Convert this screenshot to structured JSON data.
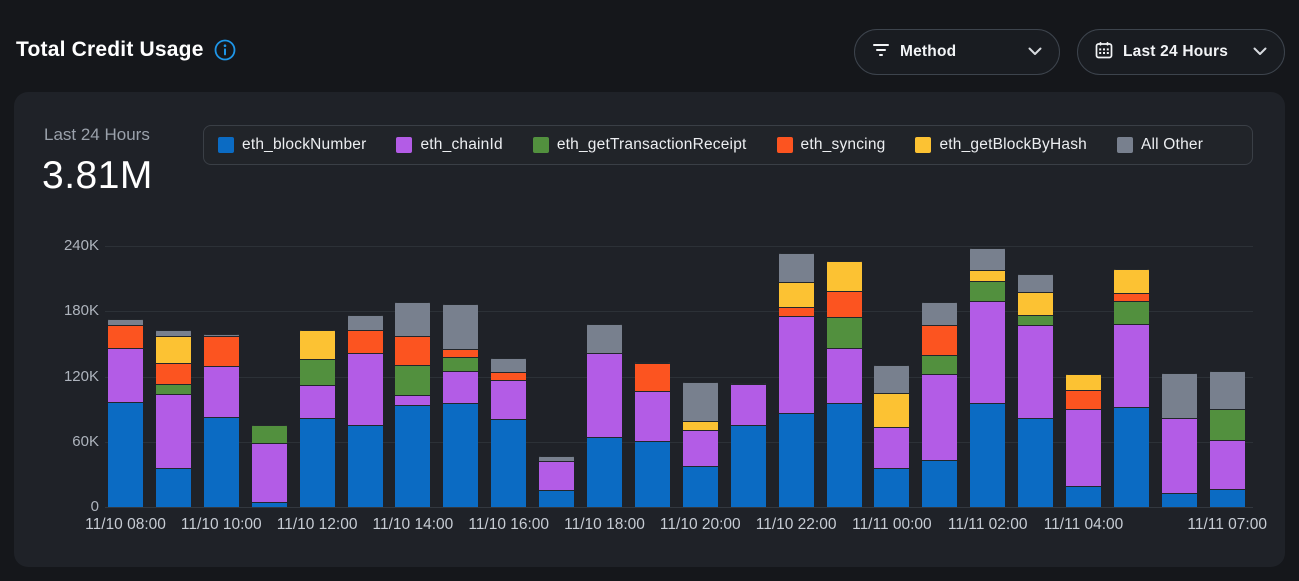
{
  "page": {
    "title": "Total Credit Usage"
  },
  "controls": {
    "method_dropdown": {
      "label": "Method",
      "icon": "filter-icon"
    },
    "time_dropdown": {
      "label": "Last 24 Hours",
      "icon": "calendar-icon"
    }
  },
  "summary": {
    "label": "Last 24 Hours",
    "value": "3.81M"
  },
  "colors": {
    "accent_info": "#1e96e8",
    "page_bg": "#15171b",
    "card_bg": "#1f2228",
    "gridline": "#2c3137"
  },
  "chart_data": {
    "type": "bar",
    "stacked": true,
    "title": "Total Credit Usage - Last 24 Hours",
    "unit": "credits, values in thousands (K)",
    "ylim": [
      0,
      240
    ],
    "y_ticks": [
      "0",
      "60K",
      "120K",
      "180K",
      "240K"
    ],
    "grid": "horizontal",
    "legend_position": "top",
    "categories": [
      "11/10 08:00",
      "11/10 09:00",
      "11/10 10:00",
      "11/10 11:00",
      "11/10 12:00",
      "11/10 13:00",
      "11/10 14:00",
      "11/10 15:00",
      "11/10 16:00",
      "11/10 17:00",
      "11/10 18:00",
      "11/10 19:00",
      "11/10 20:00",
      "11/10 21:00",
      "11/10 22:00",
      "11/10 23:00",
      "11/11 00:00",
      "11/11 01:00",
      "11/11 02:00",
      "11/11 03:00",
      "11/11 04:00",
      "11/11 05:00",
      "11/11 06:00",
      "11/11 07:00"
    ],
    "x_tick_labels": [
      {
        "index": 0,
        "label": "11/10 08:00"
      },
      {
        "index": 2,
        "label": "11/10 10:00"
      },
      {
        "index": 4,
        "label": "11/10 12:00"
      },
      {
        "index": 6,
        "label": "11/10 14:00"
      },
      {
        "index": 8,
        "label": "11/10 16:00"
      },
      {
        "index": 10,
        "label": "11/10 18:00"
      },
      {
        "index": 12,
        "label": "11/10 20:00"
      },
      {
        "index": 14,
        "label": "11/10 22:00"
      },
      {
        "index": 16,
        "label": "11/11 00:00"
      },
      {
        "index": 18,
        "label": "11/11 02:00"
      },
      {
        "index": 20,
        "label": "11/11 04:00"
      },
      {
        "index": 23,
        "label": "11/11 07:00"
      }
    ],
    "series": [
      {
        "name": "eth_blockNumber",
        "color": "#0b6bc3",
        "values": [
          97,
          36,
          83,
          5,
          82,
          75,
          94,
          96,
          81,
          16,
          64,
          61,
          38,
          75,
          86,
          96,
          36,
          43,
          96,
          82,
          19,
          92,
          13,
          17
        ]
      },
      {
        "name": "eth_chainId",
        "color": "#b35ce6",
        "values": [
          49,
          68,
          47,
          54,
          30,
          67,
          9,
          29,
          36,
          26,
          78,
          46,
          33,
          38,
          90,
          50,
          38,
          79,
          93,
          85,
          71,
          76,
          69,
          45
        ]
      },
      {
        "name": "eth_getTransactionReceipt",
        "color": "#52903e",
        "values": [
          0,
          9,
          0,
          16,
          24,
          0,
          28,
          13,
          0,
          0,
          0,
          0,
          0,
          0,
          0,
          29,
          0,
          18,
          19,
          10,
          0,
          21,
          0,
          28
        ]
      },
      {
        "name": "eth_syncing",
        "color": "#fc5420",
        "values": [
          21,
          19,
          27,
          0,
          0,
          21,
          26,
          7,
          7,
          0,
          0,
          25,
          0,
          0,
          8,
          24,
          0,
          27,
          0,
          0,
          18,
          8,
          0,
          0
        ]
      },
      {
        "name": "eth_getBlockByHash",
        "color": "#fcc233",
        "values": [
          0,
          25,
          0,
          0,
          27,
          0,
          0,
          0,
          0,
          0,
          0,
          0,
          8,
          0,
          23,
          27,
          31,
          0,
          10,
          21,
          14,
          22,
          0,
          0
        ]
      },
      {
        "name": "All Other",
        "color": "#78808e",
        "values": [
          6,
          6,
          2,
          0,
          0,
          14,
          32,
          42,
          13,
          5,
          26,
          1,
          36,
          1,
          27,
          0,
          26,
          22,
          20,
          16,
          0,
          0,
          41,
          35
        ]
      }
    ]
  }
}
